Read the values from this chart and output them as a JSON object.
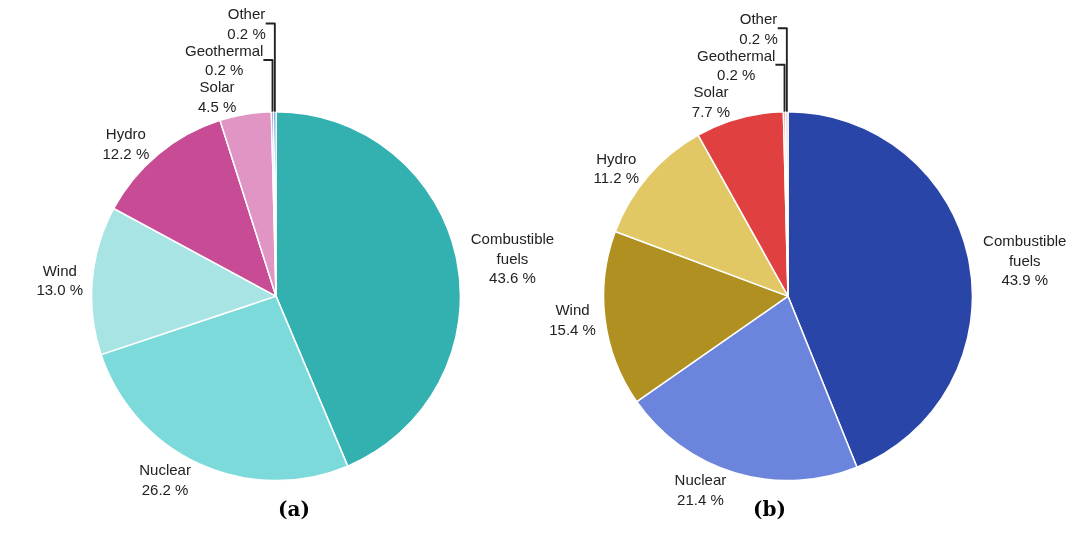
{
  "chart_data": [
    {
      "type": "pie",
      "title": "(a)",
      "categories": [
        "Combustible fuels",
        "Nuclear",
        "Wind",
        "Hydro",
        "Solar",
        "Geothermal",
        "Other"
      ],
      "values": [
        43.6,
        26.2,
        13.0,
        12.2,
        4.5,
        0.2,
        0.2
      ],
      "value_labels": [
        "43.6 %",
        "26.2 %",
        "13.0 %",
        "12.2 %",
        "4.5 %",
        "0.2 %",
        "0.2 %"
      ],
      "colors": [
        "#33b0b0",
        "#7cdada",
        "#a8e4e4",
        "#c84b96",
        "#e095c4",
        "#6d9de0",
        "#2a5fb4"
      ],
      "legend": false
    },
    {
      "type": "pie",
      "title": "(b)",
      "categories": [
        "Combustible fuels",
        "Nuclear",
        "Wind",
        "Hydro",
        "Solar",
        "Geothermal",
        "Other"
      ],
      "values": [
        43.9,
        21.4,
        15.4,
        11.2,
        7.7,
        0.2,
        0.2
      ],
      "value_labels": [
        "43.9 %",
        "21.4 %",
        "15.4 %",
        "11.2 %",
        "7.7 %",
        "0.2 %",
        "0.2 %"
      ],
      "colors": [
        "#2a45a8",
        "#6b84dc",
        "#b09020",
        "#e2c865",
        "#e04040",
        "#e8a0a0",
        "#c0c0c0"
      ],
      "legend": false
    }
  ]
}
